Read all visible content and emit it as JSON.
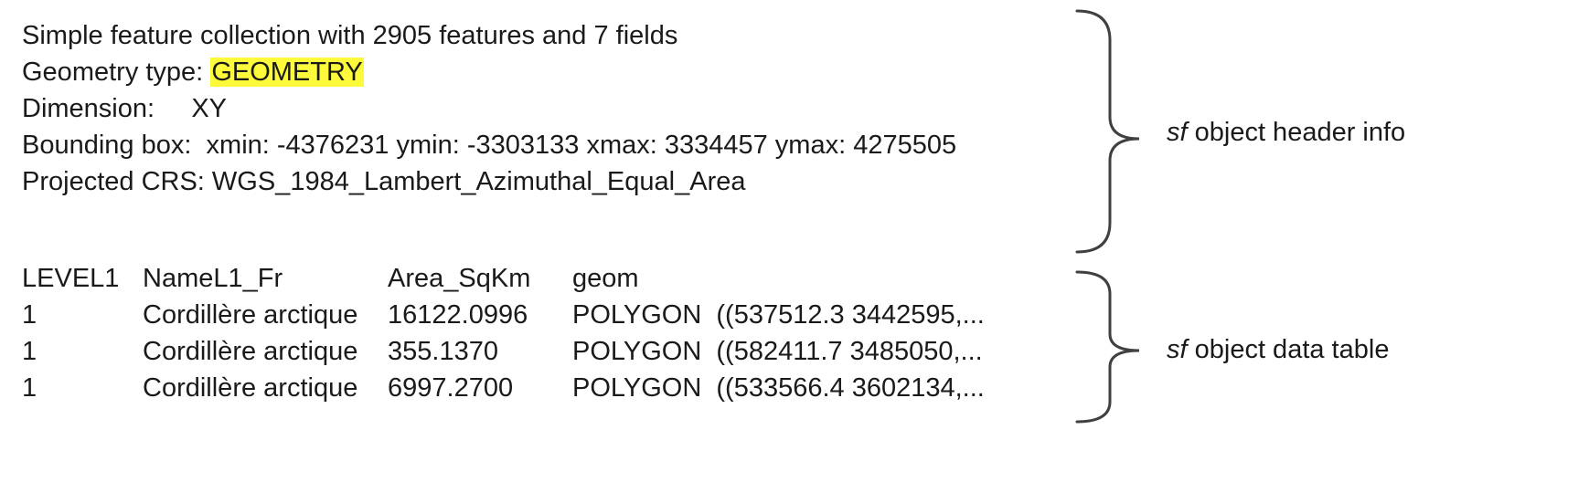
{
  "header": {
    "line1": "Simple feature collection with 2905 features and 7 fields",
    "geometry_label": "Geometry type: ",
    "geometry_value": "GEOMETRY",
    "dimension": "Dimension:     XY",
    "bbox": "Bounding box:  xmin: -4376231 ymin: -3303133 xmax: 3334457 ymax: 4275505",
    "crs": "Projected CRS: WGS_1984_Lambert_Azimuthal_Equal_Area"
  },
  "table": {
    "columns": [
      "LEVEL1",
      "NameL1_Fr",
      "Area_SqKm",
      "geom"
    ],
    "rows": [
      [
        "1",
        "Cordillère arctique",
        "16122.0996",
        "POLYGON  ((537512.3 3442595,..."
      ],
      [
        "1",
        "Cordillère arctique",
        "355.1370",
        "POLYGON  ((582411.7 3485050,..."
      ],
      [
        "1",
        "Cordillère arctique",
        "6997.2700",
        "POLYGON  ((533566.4 3602134,..."
      ]
    ]
  },
  "annotations": {
    "header_prefix": "sf",
    "header_suffix": " object header info",
    "table_prefix": "sf",
    "table_suffix": " object data table"
  },
  "colors": {
    "highlight": "#fdf93b",
    "brace": "#404040",
    "text": "#1a1a1a"
  }
}
